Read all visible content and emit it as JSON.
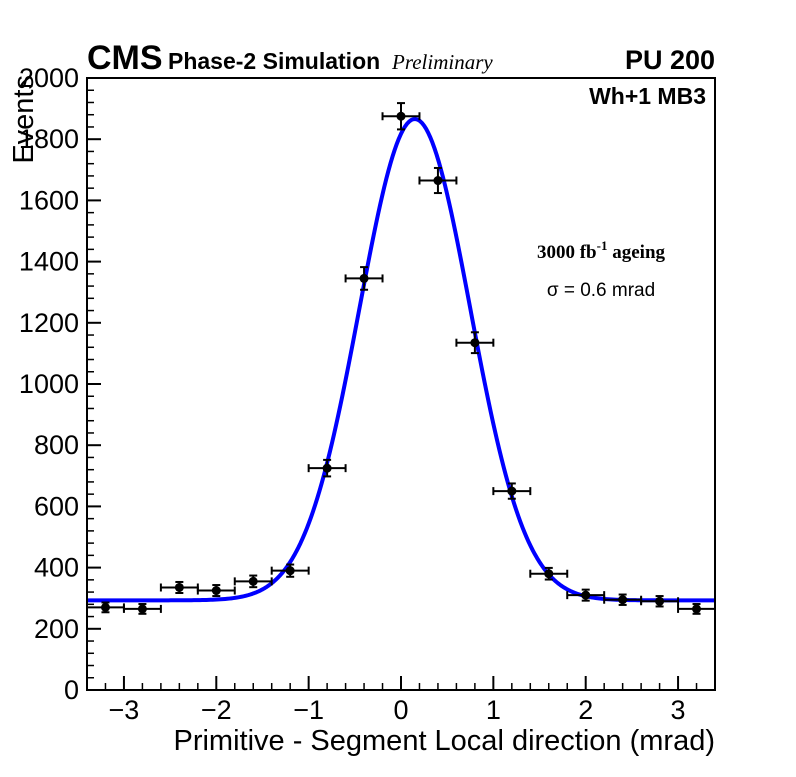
{
  "header": {
    "experiment": "CMS",
    "label": "Phase-2 Simulation",
    "sublabel": "Preliminary",
    "pileup": "PU 200"
  },
  "plot_label": "Wh+1 MB3",
  "annotations": {
    "lumi": {
      "pre": "3000 fb",
      "exp": "-1",
      "post": " ageing",
      "full": "3000 fb⁻¹ ageing"
    },
    "sigma": "σ = 0.6 mrad"
  },
  "chart_data": {
    "type": "scatter",
    "title": "",
    "xlabel": "Primitive - Segment Local direction (mrad)",
    "ylabel": "Events",
    "xlim": [
      -3.4,
      3.4
    ],
    "ylim": [
      0,
      2000
    ],
    "xticks": [
      -3,
      -2,
      -1,
      0,
      1,
      2,
      3
    ],
    "yticks": [
      0,
      200,
      400,
      600,
      800,
      1000,
      1200,
      1400,
      1600,
      1800,
      2000
    ],
    "x_minor_step": 0.2,
    "y_minor_step": 40,
    "grid": false,
    "legend": null,
    "marker_color": "#000000",
    "points": {
      "x": [
        -3.2,
        -2.8,
        -2.4,
        -2.0,
        -1.6,
        -1.2,
        -0.8,
        -0.4,
        0.0,
        0.4,
        0.8,
        1.2,
        1.6,
        2.0,
        2.4,
        2.8,
        3.2
      ],
      "y": [
        270,
        265,
        335,
        325,
        355,
        390,
        725,
        1345,
        1875,
        1665,
        1135,
        650,
        380,
        310,
        295,
        290,
        265
      ],
      "yerr": [
        16,
        16,
        18,
        18,
        19,
        20,
        27,
        37,
        43,
        41,
        34,
        25,
        19,
        18,
        17,
        17,
        16
      ],
      "xerr": 0.2
    },
    "fit": {
      "type": "gaussian_plus_constant",
      "baseline": 293,
      "amplitude": 1573,
      "mean": 0.15,
      "sigma": 0.6,
      "color": "#0000ff"
    }
  }
}
